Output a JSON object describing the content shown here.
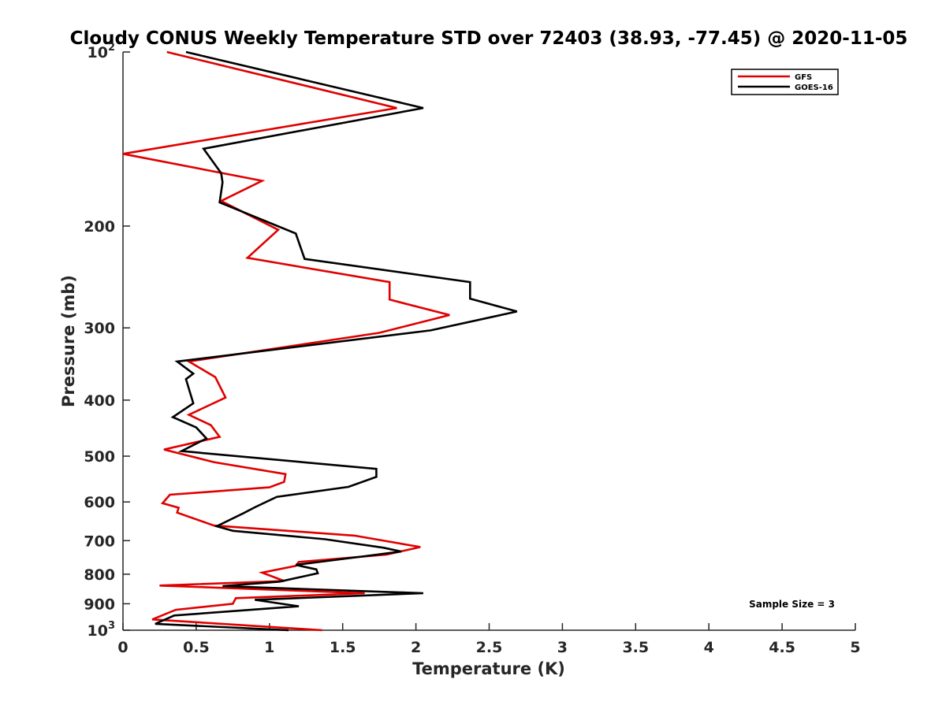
{
  "chart_data": {
    "type": "line",
    "title": "Cloudy CONUS Weekly Temperature STD over 72403 (38.93, -77.45) @ 2020-11-05",
    "xlabel": "Temperature (K)",
    "ylabel": "Pressure (mb)",
    "xlim": [
      0,
      5
    ],
    "ylim": [
      100,
      1000
    ],
    "yscale": "log",
    "y_reversed": true,
    "grid": false,
    "x_ticks": [
      "0",
      "0.5",
      "1",
      "1.5",
      "2",
      "2.5",
      "3",
      "3.5",
      "4",
      "4.5",
      "5"
    ],
    "y_ticks": [
      {
        "value": 100,
        "base": "10",
        "exp": "2"
      },
      {
        "value": 200,
        "base": "200",
        "exp": ""
      },
      {
        "value": 300,
        "base": "300",
        "exp": ""
      },
      {
        "value": 400,
        "base": "400",
        "exp": ""
      },
      {
        "value": 500,
        "base": "500",
        "exp": ""
      },
      {
        "value": 600,
        "base": "600",
        "exp": ""
      },
      {
        "value": 700,
        "base": "700",
        "exp": ""
      },
      {
        "value": 800,
        "base": "800",
        "exp": ""
      },
      {
        "value": 900,
        "base": "900",
        "exp": ""
      },
      {
        "value": 1000,
        "base": "10",
        "exp": "3"
      }
    ],
    "legend_position": "top-right",
    "annotation": "Sample Size = 3",
    "series": [
      {
        "name": "GFS",
        "color": "#e00000",
        "points": [
          [
            0.3,
            100
          ],
          [
            1.87,
            125
          ],
          [
            0.0,
            150
          ],
          [
            0.95,
            167
          ],
          [
            0.67,
            181
          ],
          [
            1.06,
            203
          ],
          [
            0.85,
            227
          ],
          [
            1.82,
            250
          ],
          [
            1.82,
            268
          ],
          [
            2.23,
            285
          ],
          [
            1.75,
            306
          ],
          [
            0.45,
            343
          ],
          [
            0.63,
            365
          ],
          [
            0.7,
            396
          ],
          [
            0.45,
            424
          ],
          [
            0.6,
            442
          ],
          [
            0.66,
            463
          ],
          [
            0.28,
            487
          ],
          [
            0.62,
            512
          ],
          [
            1.11,
            537
          ],
          [
            1.1,
            554
          ],
          [
            1.0,
            566
          ],
          [
            0.32,
            583
          ],
          [
            0.27,
            603
          ],
          [
            0.38,
            614
          ],
          [
            0.37,
            626
          ],
          [
            0.62,
            659
          ],
          [
            1.58,
            686
          ],
          [
            2.03,
            718
          ],
          [
            1.8,
            740
          ],
          [
            1.2,
            762
          ],
          [
            1.18,
            774
          ],
          [
            0.95,
            795
          ],
          [
            1.1,
            822
          ],
          [
            0.25,
            837
          ],
          [
            1.65,
            863
          ],
          [
            0.77,
            880
          ],
          [
            0.75,
            900
          ],
          [
            0.36,
            922
          ],
          [
            0.2,
            958
          ],
          [
            1.36,
            1000
          ]
        ]
      },
      {
        "name": "GOES-16",
        "color": "#000000",
        "points": [
          [
            0.43,
            100
          ],
          [
            2.05,
            125
          ],
          [
            0.55,
            147
          ],
          [
            0.67,
            162
          ],
          [
            0.68,
            168
          ],
          [
            0.66,
            182
          ],
          [
            1.18,
            206
          ],
          [
            1.24,
            228
          ],
          [
            2.37,
            250
          ],
          [
            2.37,
            267
          ],
          [
            2.69,
            281
          ],
          [
            2.1,
            303
          ],
          [
            0.37,
            343
          ],
          [
            0.48,
            360
          ],
          [
            0.43,
            368
          ],
          [
            0.48,
            405
          ],
          [
            0.34,
            428
          ],
          [
            0.5,
            446
          ],
          [
            0.57,
            466
          ],
          [
            0.4,
            490
          ],
          [
            1.73,
            526
          ],
          [
            1.73,
            543
          ],
          [
            1.54,
            565
          ],
          [
            1.05,
            588
          ],
          [
            0.9,
            613
          ],
          [
            0.82,
            628
          ],
          [
            0.64,
            661
          ],
          [
            0.75,
            673
          ],
          [
            1.38,
            696
          ],
          [
            1.78,
            720
          ],
          [
            1.9,
            731
          ],
          [
            1.61,
            747
          ],
          [
            1.18,
            771
          ],
          [
            1.32,
            785
          ],
          [
            1.33,
            797
          ],
          [
            1.07,
            824
          ],
          [
            0.68,
            839
          ],
          [
            2.05,
            863
          ],
          [
            0.9,
            886
          ],
          [
            1.2,
            909
          ],
          [
            0.35,
            943
          ],
          [
            0.22,
            975
          ],
          [
            1.13,
            1000
          ]
        ]
      }
    ]
  }
}
